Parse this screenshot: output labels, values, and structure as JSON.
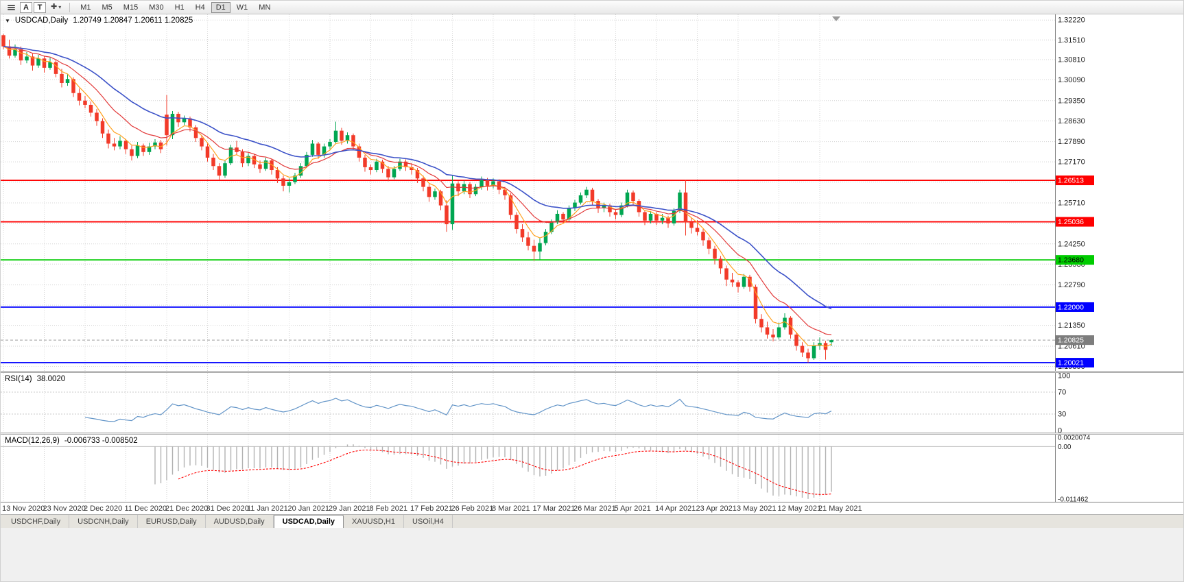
{
  "toolbar": {
    "a_label": "A",
    "t_label": "T",
    "crosshair_glyph": "✚",
    "dropdown_glyph": "▾",
    "timeframes": [
      "M1",
      "M5",
      "M15",
      "M30",
      "H1",
      "H4",
      "D1",
      "W1",
      "MN"
    ],
    "active_timeframe": "D1"
  },
  "main_chart": {
    "collapse_icon": "▼",
    "title": "USDCAD,Daily",
    "ohlc_text": "1.20749 1.20847 1.20611 1.20825",
    "axis_labels": [
      "1.32220",
      "1.31510",
      "1.30810",
      "1.30090",
      "1.29350",
      "1.28630",
      "1.27890",
      "1.27170",
      "1.26450",
      "1.25710",
      "1.24990",
      "1.24250",
      "1.23530",
      "1.22790",
      "1.22070",
      "1.21350",
      "1.20610",
      "1.19890"
    ],
    "hlines": [
      {
        "price": 1.26513,
        "label": "1.26513",
        "color": "#ff0000",
        "text_color": "#ffffff"
      },
      {
        "price": 1.25036,
        "label": "1.25036",
        "color": "#ff0000",
        "text_color": "#ffffff"
      },
      {
        "price": 1.2368,
        "label": "1.23680",
        "color": "#00cc00",
        "text_color": "#000000"
      },
      {
        "price": 1.22,
        "label": "1.22000",
        "color": "#0000ff",
        "text_color": "#ffffff"
      },
      {
        "price": 1.20021,
        "label": "1.20021",
        "color": "#0000ff",
        "text_color": "#ffffff"
      }
    ],
    "current_price": {
      "value": 1.20825,
      "label": "1.20825",
      "badge_color": "#7d7d7d",
      "text_color": "#ffffff"
    }
  },
  "rsi_panel": {
    "label": "RSI(14)",
    "value": "38.0020",
    "axis_labels": [
      "100",
      "70",
      "30",
      "0"
    ],
    "levels": [
      70,
      30
    ],
    "line_color": "#6395c8"
  },
  "macd_panel": {
    "label": "MACD(12,26,9)",
    "values": "-0.006733 -0.008502",
    "axis_labels": [
      "0.0020074",
      "0.00",
      "-0.011462"
    ],
    "range": {
      "max": 0.0020074,
      "min": -0.011462
    },
    "histogram_color": "#b2b2b2",
    "signal_color": "#ff0000"
  },
  "tabs": [
    {
      "label": "USDCHF,Daily",
      "active": false
    },
    {
      "label": "USDCNH,Daily",
      "active": false
    },
    {
      "label": "EURUSD,Daily",
      "active": false
    },
    {
      "label": "AUDUSD,Daily",
      "active": false
    },
    {
      "label": "USDCAD,Daily",
      "active": true
    },
    {
      "label": "XAUUSD,H1",
      "active": false
    },
    {
      "label": "USOil,H4",
      "active": false
    }
  ],
  "style": {
    "grid_color": "#d4d4d4",
    "axis_text": "#1a1a1a",
    "panel_bg": "#ffffff"
  },
  "chart_data": {
    "type": "candlestick",
    "symbol": "USDCAD",
    "period": "Daily",
    "title": "USDCAD,Daily 1.20749 1.20847 1.20611 1.20825",
    "price_range": {
      "min": 1.1973,
      "max": 1.3242
    },
    "x_labels": [
      "13 Nov 2020",
      "23 Nov 2020",
      "2 Dec 2020",
      "11 Dec 2020",
      "21 Dec 2020",
      "31 Dec 2020",
      "11 Jan 2021",
      "20 Jan 2021",
      "29 Jan 2021",
      "8 Feb 2021",
      "17 Feb 2021",
      "26 Feb 2021",
      "8 Mar 2021",
      "17 Mar 2021",
      "26 Mar 2021",
      "5 Apr 2021",
      "14 Apr 2021",
      "23 Apr 2021",
      "3 May 2021",
      "12 May 2021",
      "21 May 2021"
    ],
    "bars_per_label": 7,
    "up_color": "#00a651",
    "down_color": "#f23a29",
    "moving_averages": [
      {
        "period": 5,
        "method": "ema",
        "color": "#ffa11e"
      },
      {
        "period": 12,
        "method": "ema",
        "color": "#e23a3a"
      },
      {
        "period": 25,
        "method": "ema",
        "color": "#3c52c8"
      }
    ],
    "indicators": [
      {
        "name": "RSI",
        "period": 14,
        "current_value": 38.002
      },
      {
        "name": "MACD",
        "params": [
          12,
          26,
          9
        ],
        "current_values": [
          -0.006733,
          -0.008502
        ]
      }
    ],
    "candles": [
      [
        1.3168,
        1.3172,
        1.3118,
        1.3128
      ],
      [
        1.3128,
        1.3152,
        1.3085,
        1.3095
      ],
      [
        1.3095,
        1.3135,
        1.3088,
        1.3118
      ],
      [
        1.3118,
        1.3128,
        1.3062,
        1.3078
      ],
      [
        1.3078,
        1.3108,
        1.3068,
        1.3092
      ],
      [
        1.3092,
        1.3102,
        1.3042,
        1.306
      ],
      [
        1.306,
        1.3098,
        1.3052,
        1.3085
      ],
      [
        1.3085,
        1.3092,
        1.3035,
        1.3052
      ],
      [
        1.3052,
        1.3088,
        1.3045,
        1.3072
      ],
      [
        1.3072,
        1.308,
        1.3018,
        1.303
      ],
      [
        1.303,
        1.3048,
        1.2982,
        1.2998
      ],
      [
        1.2998,
        1.303,
        1.2988,
        1.3012
      ],
      [
        1.3012,
        1.3018,
        1.2948,
        1.2962
      ],
      [
        1.2962,
        1.2978,
        1.2918,
        1.2935
      ],
      [
        1.2935,
        1.2952,
        1.2908,
        1.292
      ],
      [
        1.292,
        1.2932,
        1.2878,
        1.2892
      ],
      [
        1.2892,
        1.2905,
        1.2845,
        1.2862
      ],
      [
        1.2862,
        1.2872,
        1.2802,
        1.2818
      ],
      [
        1.2818,
        1.2832,
        1.2765,
        1.2782
      ],
      [
        1.2782,
        1.2802,
        1.2758,
        1.2772
      ],
      [
        1.2772,
        1.2808,
        1.2762,
        1.2792
      ],
      [
        1.2792,
        1.2798,
        1.2745,
        1.2762
      ],
      [
        1.2762,
        1.2775,
        1.2722,
        1.2738
      ],
      [
        1.2738,
        1.2788,
        1.273,
        1.2775
      ],
      [
        1.2775,
        1.2782,
        1.2738,
        1.2752
      ],
      [
        1.2752,
        1.2785,
        1.2742,
        1.2772
      ],
      [
        1.2772,
        1.2798,
        1.2762,
        1.2786
      ],
      [
        1.2786,
        1.2795,
        1.2748,
        1.2762
      ],
      [
        1.2885,
        1.2955,
        1.2775,
        1.2812
      ],
      [
        1.2812,
        1.2898,
        1.2798,
        1.2888
      ],
      [
        1.2888,
        1.2895,
        1.2842,
        1.2858
      ],
      [
        1.2858,
        1.2882,
        1.2848,
        1.2872
      ],
      [
        1.2872,
        1.2878,
        1.2825,
        1.284
      ],
      [
        1.284,
        1.2848,
        1.2788,
        1.2802
      ],
      [
        1.2802,
        1.2812,
        1.2758,
        1.2772
      ],
      [
        1.2772,
        1.2782,
        1.2718,
        1.2732
      ],
      [
        1.2732,
        1.2745,
        1.2688,
        1.2702
      ],
      [
        1.2702,
        1.2712,
        1.2652,
        1.2668
      ],
      [
        1.2668,
        1.2722,
        1.266,
        1.2712
      ],
      [
        1.2712,
        1.2778,
        1.2705,
        1.2768
      ],
      [
        1.2768,
        1.2792,
        1.2742,
        1.2752
      ],
      [
        1.2752,
        1.2762,
        1.2698,
        1.2712
      ],
      [
        1.2712,
        1.2748,
        1.2702,
        1.2738
      ],
      [
        1.2738,
        1.2745,
        1.2695,
        1.2708
      ],
      [
        1.2708,
        1.2722,
        1.2678,
        1.2692
      ],
      [
        1.2692,
        1.2732,
        1.2685,
        1.2722
      ],
      [
        1.2722,
        1.2728,
        1.2672,
        1.2688
      ],
      [
        1.2688,
        1.2698,
        1.2642,
        1.2658
      ],
      [
        1.2658,
        1.2668,
        1.2612,
        1.2632
      ],
      [
        1.2632,
        1.2658,
        1.2608,
        1.2645
      ],
      [
        1.2645,
        1.2678,
        1.2638,
        1.2668
      ],
      [
        1.2668,
        1.2712,
        1.266,
        1.2702
      ],
      [
        1.2702,
        1.2752,
        1.2695,
        1.2742
      ],
      [
        1.2742,
        1.2795,
        1.2735,
        1.2782
      ],
      [
        1.2782,
        1.2788,
        1.2728,
        1.2742
      ],
      [
        1.2742,
        1.2782,
        1.2732,
        1.2772
      ],
      [
        1.2772,
        1.2798,
        1.2762,
        1.2788
      ],
      [
        1.2788,
        1.286,
        1.278,
        1.2828
      ],
      [
        1.2828,
        1.2838,
        1.2778,
        1.2792
      ],
      [
        1.2792,
        1.2822,
        1.2782,
        1.2812
      ],
      [
        1.2812,
        1.2818,
        1.2758,
        1.2772
      ],
      [
        1.2772,
        1.2782,
        1.2718,
        1.2732
      ],
      [
        1.2732,
        1.2742,
        1.2682,
        1.2698
      ],
      [
        1.2698,
        1.2708,
        1.2672,
        1.2688
      ],
      [
        1.2688,
        1.2728,
        1.268,
        1.2718
      ],
      [
        1.2718,
        1.2725,
        1.2678,
        1.2692
      ],
      [
        1.2692,
        1.2702,
        1.2648,
        1.2662
      ],
      [
        1.2662,
        1.2702,
        1.2655,
        1.2692
      ],
      [
        1.2692,
        1.2728,
        1.2685,
        1.2718
      ],
      [
        1.2718,
        1.2726,
        1.2685,
        1.2698
      ],
      [
        1.2698,
        1.2712,
        1.2672,
        1.2688
      ],
      [
        1.2688,
        1.2695,
        1.2642,
        1.2658
      ],
      [
        1.2658,
        1.2668,
        1.2612,
        1.2628
      ],
      [
        1.2628,
        1.2638,
        1.2575,
        1.2592
      ],
      [
        1.2592,
        1.2622,
        1.2582,
        1.2612
      ],
      [
        1.2612,
        1.2618,
        1.2545,
        1.2562
      ],
      [
        1.2562,
        1.258,
        1.2468,
        1.2495
      ],
      [
        1.2495,
        1.2668,
        1.2475,
        1.264
      ],
      [
        1.264,
        1.2648,
        1.2595,
        1.2612
      ],
      [
        1.2612,
        1.265,
        1.2602,
        1.2638
      ],
      [
        1.2638,
        1.2645,
        1.2588,
        1.2602
      ],
      [
        1.2602,
        1.2638,
        1.2595,
        1.2628
      ],
      [
        1.2628,
        1.2665,
        1.2618,
        1.2652
      ],
      [
        1.2652,
        1.266,
        1.2615,
        1.2632
      ],
      [
        1.2632,
        1.2658,
        1.2622,
        1.2648
      ],
      [
        1.2648,
        1.2655,
        1.2602,
        1.2618
      ],
      [
        1.2618,
        1.2628,
        1.2582,
        1.2598
      ],
      [
        1.2598,
        1.2605,
        1.2512,
        1.2528
      ],
      [
        1.2528,
        1.2538,
        1.2462,
        1.2478
      ],
      [
        1.2478,
        1.2495,
        1.2432,
        1.2448
      ],
      [
        1.2448,
        1.2468,
        1.2402,
        1.2418
      ],
      [
        1.2418,
        1.244,
        1.2365,
        1.2398
      ],
      [
        1.2398,
        1.2445,
        1.2368,
        1.2428
      ],
      [
        1.2428,
        1.2478,
        1.242,
        1.2468
      ],
      [
        1.2468,
        1.2512,
        1.246,
        1.2502
      ],
      [
        1.2502,
        1.2545,
        1.2495,
        1.2532
      ],
      [
        1.2532,
        1.2538,
        1.2498,
        1.2512
      ],
      [
        1.2512,
        1.2562,
        1.2505,
        1.2552
      ],
      [
        1.2552,
        1.2582,
        1.2542,
        1.2572
      ],
      [
        1.2572,
        1.2608,
        1.2565,
        1.2598
      ],
      [
        1.2598,
        1.2628,
        1.2588,
        1.2618
      ],
      [
        1.2618,
        1.2625,
        1.2562,
        1.2578
      ],
      [
        1.2578,
        1.2585,
        1.2535,
        1.2552
      ],
      [
        1.2552,
        1.2572,
        1.2538,
        1.2562
      ],
      [
        1.2562,
        1.2568,
        1.2522,
        1.2538
      ],
      [
        1.2538,
        1.2548,
        1.2512,
        1.2528
      ],
      [
        1.2528,
        1.2572,
        1.252,
        1.2562
      ],
      [
        1.2562,
        1.2618,
        1.2555,
        1.2608
      ],
      [
        1.2608,
        1.2615,
        1.2562,
        1.2578
      ],
      [
        1.2578,
        1.2585,
        1.2522,
        1.2538
      ],
      [
        1.2538,
        1.2545,
        1.2492,
        1.2508
      ],
      [
        1.2508,
        1.2542,
        1.2498,
        1.2532
      ],
      [
        1.2532,
        1.2538,
        1.2492,
        1.2508
      ],
      [
        1.2508,
        1.2532,
        1.2495,
        1.2518
      ],
      [
        1.2518,
        1.2525,
        1.2482,
        1.2498
      ],
      [
        1.2498,
        1.2552,
        1.249,
        1.2542
      ],
      [
        1.2542,
        1.2618,
        1.2535,
        1.2608
      ],
      [
        1.2608,
        1.2654,
        1.2455,
        1.2502
      ],
      [
        1.2502,
        1.2518,
        1.2462,
        1.2482
      ],
      [
        1.2482,
        1.251,
        1.2455,
        1.2468
      ],
      [
        1.2468,
        1.2478,
        1.2418,
        1.2438
      ],
      [
        1.2438,
        1.2448,
        1.2388,
        1.2408
      ],
      [
        1.2408,
        1.2418,
        1.2352,
        1.2372
      ],
      [
        1.2372,
        1.2382,
        1.2318,
        1.2338
      ],
      [
        1.2338,
        1.2348,
        1.2275,
        1.2298
      ],
      [
        1.2298,
        1.2322,
        1.2272,
        1.2288
      ],
      [
        1.2288,
        1.2295,
        1.2252,
        1.2272
      ],
      [
        1.2272,
        1.2318,
        1.2265,
        1.2308
      ],
      [
        1.2308,
        1.2315,
        1.2255,
        1.2272
      ],
      [
        1.2272,
        1.228,
        1.2142,
        1.2158
      ],
      [
        1.2158,
        1.2175,
        1.211,
        1.2128
      ],
      [
        1.2128,
        1.2148,
        1.2088,
        1.2102
      ],
      [
        1.2102,
        1.2122,
        1.2078,
        1.2092
      ],
      [
        1.2092,
        1.2145,
        1.2085,
        1.2128
      ],
      [
        1.2128,
        1.2178,
        1.212,
        1.2162
      ],
      [
        1.2162,
        1.2168,
        1.2088,
        1.2102
      ],
      [
        1.2102,
        1.2112,
        1.2045,
        1.2062
      ],
      [
        1.2062,
        1.2075,
        1.2022,
        1.2038
      ],
      [
        1.2038,
        1.2052,
        1.2002,
        1.2018
      ],
      [
        1.2018,
        1.2075,
        1.2012,
        1.2062
      ],
      [
        1.2062,
        1.2092,
        1.2048,
        1.2072
      ],
      [
        1.2072,
        1.208,
        1.2013,
        1.2048
      ],
      [
        1.20749,
        1.20847,
        1.20611,
        1.20825
      ]
    ]
  }
}
